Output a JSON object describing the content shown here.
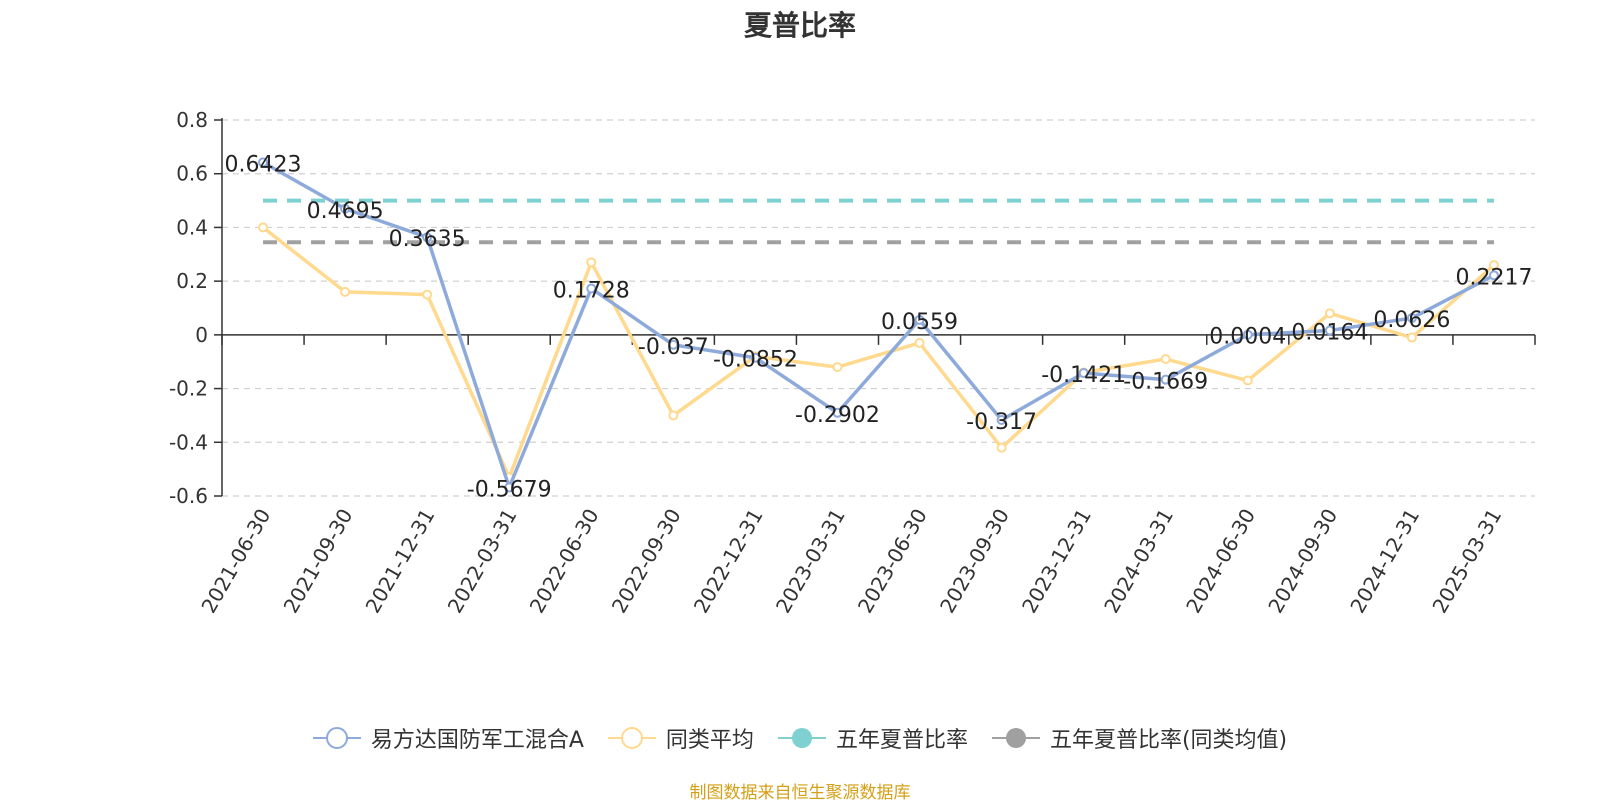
{
  "chart_data": {
    "type": "line",
    "title": "夏普比率",
    "categories": [
      "2021-06-30",
      "2021-09-30",
      "2021-12-31",
      "2022-03-31",
      "2022-06-30",
      "2022-09-30",
      "2022-12-31",
      "2023-03-31",
      "2023-06-30",
      "2023-09-30",
      "2023-12-31",
      "2024-03-31",
      "2024-06-30",
      "2024-09-30",
      "2024-12-31",
      "2025-03-31"
    ],
    "ylim": [
      -0.6,
      0.8
    ],
    "yticks": [
      0.8,
      0.6,
      0.4,
      0.2,
      0,
      -0.2,
      -0.4,
      -0.6
    ],
    "grid": true,
    "legend_position": "bottom",
    "series": [
      {
        "name": "易方达国防军工混合A",
        "color": "#8eaadb",
        "values": [
          0.6423,
          0.4695,
          0.3635,
          -0.5679,
          0.1728,
          -0.037,
          -0.0852,
          -0.2902,
          0.0559,
          -0.317,
          -0.1421,
          -0.1669,
          0.0004,
          0.0164,
          0.0626,
          0.2217
        ],
        "labels": [
          "0.6423",
          "0.4695",
          "0.3635",
          "-0.5679",
          "0.1728",
          "-0.037",
          "-0.0852",
          "-0.2902",
          "0.0559",
          "-0.317",
          "-0.1421",
          "-0.1669",
          "0.0004",
          "0.0164",
          "0.0626",
          "0.2217"
        ]
      },
      {
        "name": "同类平均",
        "color": "#ffd98e",
        "values": [
          0.4,
          0.16,
          0.15,
          -0.53,
          0.27,
          -0.3,
          -0.08,
          -0.12,
          -0.03,
          -0.42,
          -0.14,
          -0.09,
          -0.17,
          0.08,
          -0.01,
          0.26
        ]
      },
      {
        "name": "五年夏普比率",
        "color": "#7fd1d1",
        "style": "dashed",
        "value": 0.5
      },
      {
        "name": "五年夏普比率(同类均值)",
        "color": "#a0a0a0",
        "style": "dashed",
        "value": 0.345
      }
    ]
  },
  "source_note": "制图数据来自恒生聚源数据库"
}
